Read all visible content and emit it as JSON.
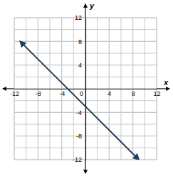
{
  "chart_data": {
    "type": "line",
    "xlabel": "x",
    "ylabel": "y",
    "x": [
      -11,
      9
    ],
    "values": [
      8,
      -12
    ],
    "color": "#1f3f5f",
    "xlim": [
      -12,
      12
    ],
    "xticks": [
      -12,
      -8,
      -4,
      0,
      4,
      8,
      12
    ],
    "ylim": [
      -12,
      12
    ],
    "yticks": [
      -12,
      -8,
      -4,
      4,
      8,
      12
    ],
    "grid": true
  }
}
